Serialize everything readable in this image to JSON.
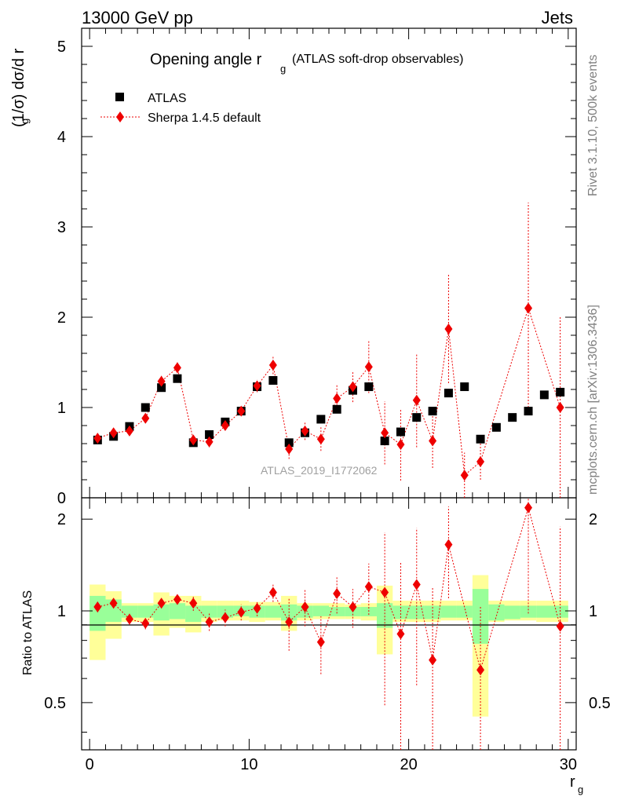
{
  "header": {
    "left": "13000 GeV pp",
    "right": "Jets"
  },
  "side_labels": {
    "rivet": "Rivet 3.1.10,  500k events",
    "mcplots": "mcplots.cern.ch [arXiv:1306.3436]"
  },
  "watermark": "ATLAS_2019_I1772062",
  "colors": {
    "data": "#000000",
    "mc": "#ee0000",
    "band_inner": "#99ff99",
    "band_outer": "#ffff99"
  },
  "chart_data": [
    {
      "type": "scatter",
      "title_main": "Opening angle r",
      "title_sub": "g",
      "title_suffix": "(ATLAS soft-drop observables)",
      "ylabel": "(1/σ) dσ/d r",
      "ylabel_sub": "g",
      "ylim": [
        0,
        5.2
      ],
      "xlim": [
        -0.5,
        30.5
      ],
      "yticks": [
        "0",
        "1",
        "2",
        "3",
        "4",
        "5"
      ],
      "legend_position": "top-left",
      "series": [
        {
          "name": "ATLAS",
          "x": [
            0.5,
            1.5,
            2.5,
            3.5,
            4.5,
            5.5,
            6.5,
            7.5,
            8.5,
            9.5,
            10.5,
            11.5,
            12.5,
            13.5,
            14.5,
            15.5,
            16.5,
            17.5,
            18.5,
            19.5,
            20.5,
            21.5,
            22.5,
            23.5,
            24.5,
            25.5,
            26.5,
            27.5,
            28.5,
            29.5
          ],
          "y": [
            0.64,
            0.68,
            0.79,
            1.0,
            1.22,
            1.32,
            0.61,
            0.7,
            0.84,
            0.96,
            1.23,
            1.3,
            0.61,
            0.72,
            0.87,
            0.98,
            1.19,
            1.23,
            0.63,
            0.73,
            0.89,
            0.96,
            1.16,
            1.23,
            0.65,
            0.78,
            0.89,
            0.96,
            1.14,
            1.17
          ]
        },
        {
          "name": "Sherpa 1.4.5 default",
          "x": [
            0.5,
            1.5,
            2.5,
            3.5,
            4.5,
            5.5,
            6.5,
            7.5,
            8.5,
            9.5,
            10.5,
            11.5,
            12.5,
            13.5,
            14.5,
            15.5,
            16.5,
            17.5,
            18.5,
            19.5,
            20.5,
            21.5,
            22.5,
            23.5,
            24.5,
            27.5,
            29.5
          ],
          "y": [
            0.66,
            0.72,
            0.74,
            0.88,
            1.29,
            1.44,
            0.64,
            0.62,
            0.8,
            0.96,
            1.24,
            1.47,
            0.54,
            0.74,
            0.65,
            1.1,
            1.23,
            1.45,
            0.72,
            0.59,
            1.08,
            0.63,
            1.87,
            0.25,
            0.4,
            2.1,
            1.0
          ],
          "yerr": [
            0.03,
            0.03,
            0.04,
            0.05,
            0.06,
            0.06,
            0.05,
            0.06,
            0.05,
            0.05,
            0.07,
            0.1,
            0.11,
            0.1,
            0.13,
            0.15,
            0.17,
            0.29,
            0.35,
            0.4,
            0.52,
            0.3,
            0.6,
            0.25,
            0.2,
            1.17,
            1.0
          ]
        }
      ]
    },
    {
      "type": "scatter",
      "ylabel": "Ratio to ATLAS",
      "xlabel": "r",
      "xlabel_sub": "g",
      "ylim": [
        0.35,
        2.35
      ],
      "xlim": [
        -0.5,
        30.5
      ],
      "yticks": [
        "0.5",
        "1",
        "2"
      ],
      "xticks": [
        "0",
        "10",
        "20",
        "30"
      ],
      "bands": {
        "inner": [
          [
            0.86,
            1.12
          ],
          [
            0.92,
            1.09
          ],
          [
            0.95,
            1.04
          ],
          [
            0.95,
            1.04
          ],
          [
            0.93,
            1.05
          ],
          [
            0.94,
            1.06
          ],
          [
            0.92,
            1.04
          ],
          [
            0.95,
            1.04
          ],
          [
            0.95,
            1.04
          ],
          [
            0.96,
            1.04
          ],
          [
            0.95,
            1.04
          ],
          [
            0.95,
            1.04
          ],
          [
            0.93,
            1.05
          ],
          [
            0.95,
            1.04
          ],
          [
            0.96,
            1.04
          ],
          [
            0.96,
            1.03
          ],
          [
            0.96,
            1.03
          ],
          [
            0.96,
            1.03
          ],
          [
            0.88,
            1.06
          ],
          [
            0.94,
            1.04
          ],
          [
            0.94,
            1.04
          ],
          [
            0.94,
            1.04
          ],
          [
            0.95,
            1.04
          ],
          [
            0.95,
            1.04
          ],
          [
            0.78,
            1.18
          ],
          [
            0.93,
            1.05
          ],
          [
            0.94,
            1.04
          ],
          [
            0.95,
            1.04
          ],
          [
            0.95,
            1.04
          ],
          [
            0.95,
            1.04
          ]
        ],
        "outer": [
          [
            0.69,
            1.22
          ],
          [
            0.81,
            1.16
          ],
          [
            0.92,
            1.06
          ],
          [
            0.92,
            1.06
          ],
          [
            0.83,
            1.15
          ],
          [
            0.88,
            1.12
          ],
          [
            0.85,
            1.12
          ],
          [
            0.92,
            1.08
          ],
          [
            0.93,
            1.08
          ],
          [
            0.93,
            1.08
          ],
          [
            0.92,
            1.07
          ],
          [
            0.93,
            1.07
          ],
          [
            0.86,
            1.12
          ],
          [
            0.93,
            1.06
          ],
          [
            0.94,
            1.06
          ],
          [
            0.94,
            1.06
          ],
          [
            0.94,
            1.05
          ],
          [
            0.93,
            1.06
          ],
          [
            0.72,
            1.21
          ],
          [
            0.92,
            1.08
          ],
          [
            0.92,
            1.08
          ],
          [
            0.92,
            1.08
          ],
          [
            0.93,
            1.08
          ],
          [
            0.93,
            1.08
          ],
          [
            0.45,
            1.31
          ],
          [
            0.92,
            1.08
          ],
          [
            0.93,
            1.08
          ],
          [
            0.93,
            1.08
          ],
          [
            0.92,
            1.08
          ],
          [
            0.92,
            1.08
          ]
        ]
      },
      "series": [
        {
          "name": "Sherpa 1.4.5 default",
          "x": [
            0.5,
            1.5,
            2.5,
            3.5,
            4.5,
            5.5,
            6.5,
            7.5,
            8.5,
            9.5,
            10.5,
            11.5,
            12.5,
            13.5,
            14.5,
            15.5,
            16.5,
            17.5,
            18.5,
            19.5,
            20.5,
            21.5,
            22.5,
            24.5,
            27.5,
            29.5
          ],
          "y": [
            1.03,
            1.06,
            0.94,
            0.91,
            1.06,
            1.09,
            1.06,
            0.92,
            0.95,
            0.99,
            1.02,
            1.15,
            0.92,
            1.03,
            0.79,
            1.14,
            1.03,
            1.2,
            1.15,
            0.84,
            1.22,
            0.69,
            1.65,
            0.64,
            2.18,
            0.89
          ],
          "yerr": [
            0.04,
            0.04,
            0.04,
            0.04,
            0.04,
            0.04,
            0.06,
            0.06,
            0.06,
            0.06,
            0.06,
            0.08,
            0.18,
            0.14,
            0.17,
            0.16,
            0.15,
            0.23,
            0.66,
            0.6,
            0.65,
            0.5,
            0.55,
            0.4,
            1.2,
            1.0
          ]
        }
      ]
    }
  ]
}
